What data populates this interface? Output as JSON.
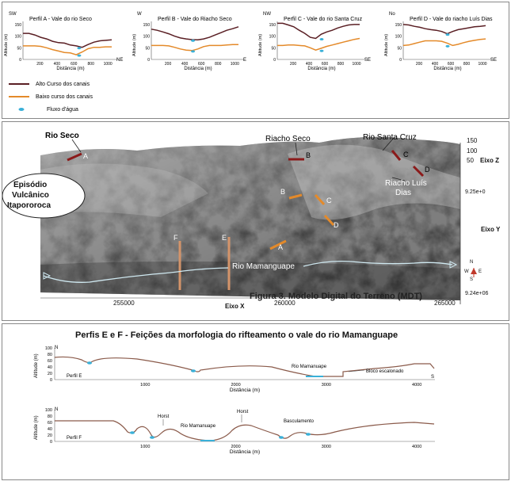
{
  "top_panel": {
    "profiles": [
      {
        "id": "A",
        "title": "Perfil A - Vale do rio Seco",
        "dir_left": "SW",
        "dir_right": "NE",
        "alto": [
          112,
          112,
          105,
          95,
          88,
          78,
          72,
          70,
          62,
          58,
          52,
          64,
          74,
          80,
          82,
          84
        ],
        "baixo": [
          58,
          58,
          58,
          56,
          50,
          42,
          36,
          30,
          28,
          20,
          32,
          46,
          52,
          52,
          54,
          54
        ],
        "water_x": 650
      },
      {
        "id": "B",
        "title": "Perfil B - Vale do Riacho Seco",
        "dir_left": "W",
        "dir_right": "E",
        "alto": [
          130,
          125,
          118,
          110,
          100,
          92,
          88,
          85,
          84,
          88,
          95,
          105,
          115,
          125,
          132,
          140
        ],
        "baixo": [
          60,
          60,
          60,
          58,
          52,
          45,
          40,
          38,
          45,
          55,
          60,
          60,
          60,
          62,
          64,
          64
        ],
        "water_x": 490
      },
      {
        "id": "C",
        "title": "Perfil C - Vale do rio Santa Cruz",
        "dir_left": "NW",
        "dir_right": "SE",
        "alto": [
          155,
          155,
          148,
          140,
          125,
          112,
          95,
          90,
          108,
          118,
          125,
          135,
          142,
          148,
          150,
          150
        ],
        "baixo": [
          60,
          60,
          62,
          62,
          60,
          58,
          50,
          40,
          48,
          56,
          62,
          68,
          74,
          80,
          86,
          90
        ],
        "water_x": 550
      },
      {
        "id": "D",
        "title": "Perfil D - Vale do riacho Luís Dias",
        "dir_left": "No",
        "dir_right": "SE",
        "alto": [
          150,
          148,
          142,
          138,
          132,
          128,
          125,
          120,
          110,
          120,
          128,
          132,
          136,
          140,
          142,
          145
        ],
        "baixo": [
          60,
          62,
          68,
          74,
          80,
          80,
          80,
          78,
          70,
          60,
          65,
          72,
          78,
          82,
          86,
          88
        ],
        "water_x": 550
      }
    ],
    "y_label": "Altitude (m)",
    "x_label": "Distância (m)",
    "y_ticks": [
      "0",
      "50",
      "100",
      "150"
    ],
    "x_ticks": [
      "200",
      "400",
      "600",
      "800",
      "1000"
    ],
    "legend": [
      {
        "label": "Alto Curso dos canais",
        "color": "#5a1f24"
      },
      {
        "label": "Baixo curso dos canais",
        "color": "#e48a2a"
      },
      {
        "label": "Fluxo d'água",
        "color": "#3ab0d8"
      }
    ]
  },
  "mdt": {
    "labels": {
      "rio_seco": "Rio Seco",
      "riacho_seco": "Riacho Seco",
      "rio_santa_cruz": "Rio Santa Cruz",
      "riacho_luis_dias_1": "Riacho Luís",
      "riacho_luis_dias_2": "Dias",
      "episodio_1": "Episódio",
      "episodio_2": "Vulcânico",
      "episodio_3": "Itapororoca",
      "rio_mamanguape": "Rio Mamanguape",
      "caption": "Figura 3. Modelo Digital do Terreno (MDT)",
      "eixo_x": "Eixo X",
      "eixo_y": "Eixo Y",
      "eixo_z": "Eixo Z"
    },
    "section_letters": [
      "A",
      "B",
      "C",
      "D",
      "B",
      "C",
      "D",
      "A",
      "F",
      "E"
    ],
    "z_ticks": [
      "150",
      "100",
      "50"
    ],
    "y_ticks": [
      "9.25e+0",
      "9.24e+06"
    ],
    "x_ticks": [
      "255000",
      "260000",
      "265000"
    ],
    "compass": [
      "N",
      "W",
      "E",
      "S"
    ]
  },
  "bottom_panel": {
    "title": "Perfis E e F -  Feições da morfologia do rifteamento o vale do rio Mamanguape",
    "y_label": "Altitude (m)",
    "x_label": "Distância (m)",
    "y_ticks_e": [
      "0",
      "20",
      "40",
      "60",
      "80",
      "100"
    ],
    "y_ticks_f": [
      "0",
      "20",
      "40",
      "60",
      "80",
      "100"
    ],
    "x_ticks_e": [
      "1000",
      "2000",
      "3000",
      "4000"
    ],
    "x_ticks_f": [
      "1000",
      "2000",
      "3000",
      "4000"
    ],
    "profile_e": {
      "name": "Perfil E",
      "dir_left": "N",
      "dir_right": "S",
      "labels": [
        "Rio Mamanuape",
        "Bloco escalonado"
      ]
    },
    "profile_f": {
      "name": "Perfil F",
      "dir_left": "N",
      "labels": [
        "Horst",
        "Rio Mamanuape",
        "Horst",
        "Basculamento"
      ]
    }
  }
}
